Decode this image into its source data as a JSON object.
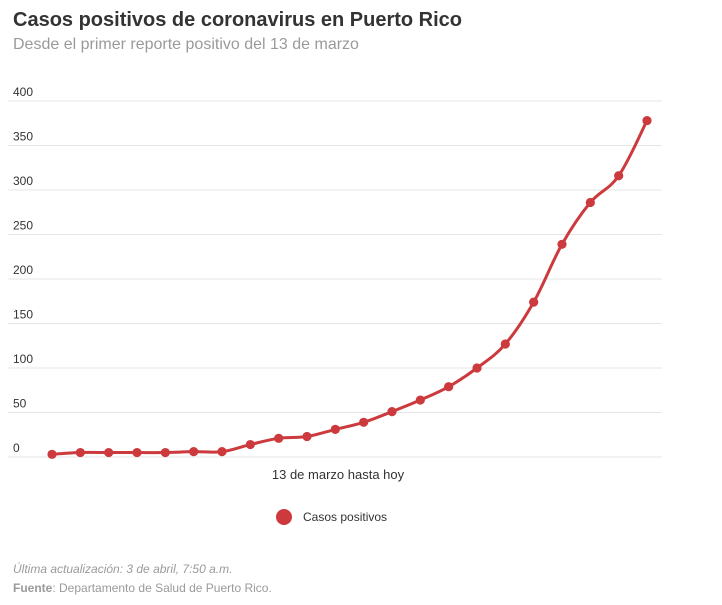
{
  "colors": {
    "series": "#cc3a3d",
    "grid": "#e6e6e6",
    "text": "#333333",
    "muted": "#9a9a9a"
  },
  "chart_data": {
    "type": "line",
    "title": "Casos positivos de coronavirus en Puerto Rico",
    "subtitle": "Desde el primer reporte positivo del 13 de marzo",
    "xlabel": "13 de marzo hasta hoy",
    "ylabel": "",
    "ylim": [
      0,
      400
    ],
    "yticks": [
      0,
      50,
      100,
      150,
      200,
      250,
      300,
      350,
      400
    ],
    "grid": true,
    "legend_position": "bottom-center",
    "x": [
      1,
      2,
      3,
      4,
      5,
      6,
      7,
      8,
      9,
      10,
      11,
      12,
      13,
      14,
      15,
      16,
      17,
      18,
      19,
      20,
      21,
      22
    ],
    "series": [
      {
        "name": "Casos positivos",
        "values": [
          3,
          5,
          5,
          5,
          5,
          6,
          6,
          14,
          21,
          23,
          31,
          39,
          51,
          64,
          79,
          100,
          127,
          174,
          239,
          286,
          316,
          378
        ]
      }
    ]
  },
  "legend": {
    "label": "Casos positivos"
  },
  "footer": {
    "update": "Última actualización: 3 de abril, 7:50 a.m.",
    "source_label": "Fuente",
    "source_text": ": Departamento de Salud de Puerto Rico."
  }
}
